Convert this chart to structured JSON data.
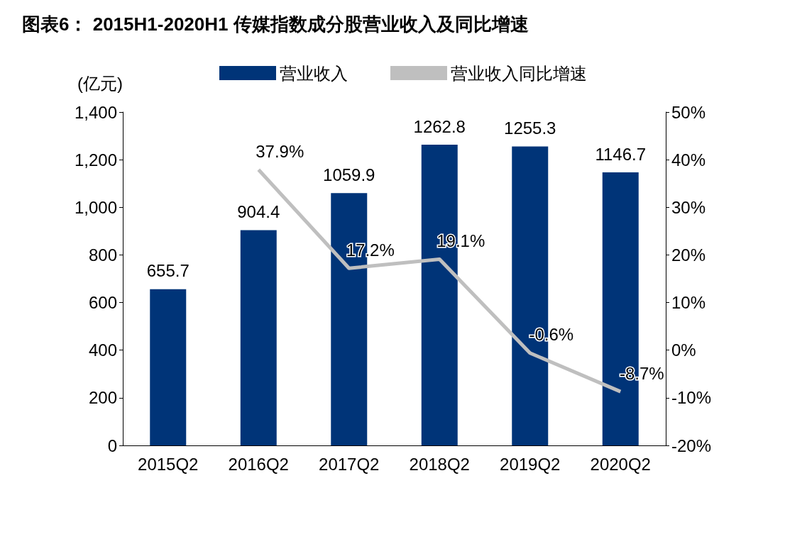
{
  "chart_data": {
    "type": "bar",
    "title": "图表6： 2015H1-2020H1 传媒指数成分股营业收入及同比增速",
    "ylabel": "(亿元)",
    "categories": [
      "2015Q2",
      "2016Q2",
      "2017Q2",
      "2018Q2",
      "2019Q2",
      "2020Q2"
    ],
    "series": [
      {
        "name": "营业收入",
        "color": "#003478",
        "values": [
          655.7,
          904.4,
          1059.9,
          1262.8,
          1255.3,
          1146.7
        ],
        "value_labels": [
          "655.7",
          "904.4",
          "1059.9",
          "1262.8",
          "1255.3",
          "1146.7"
        ]
      },
      {
        "name": "营业收入同比增速",
        "type": "line",
        "axis": "y2",
        "color": "#bfbfbf",
        "marker": "none",
        "values": [
          null,
          37.9,
          17.2,
          19.1,
          -0.6,
          -8.7
        ],
        "value_labels": [
          null,
          "37.9%",
          "17.2%",
          "19.1%",
          "-0.6%",
          "-8.7%"
        ]
      }
    ],
    "ylim": [
      0,
      1400
    ],
    "yticks": [
      {
        "value": 0,
        "label": "0"
      },
      {
        "value": 200,
        "label": "200"
      },
      {
        "value": 400,
        "label": "400"
      },
      {
        "value": 600,
        "label": "600"
      },
      {
        "value": 800,
        "label": "800"
      },
      {
        "value": 1000,
        "label": "1,000"
      },
      {
        "value": 1200,
        "label": "1,200"
      },
      {
        "value": 1400,
        "label": "1,400"
      }
    ],
    "y2lim": [
      -20,
      50
    ],
    "y2ticks": [
      {
        "value": -20,
        "label": "-20%"
      },
      {
        "value": -10,
        "label": "-10%"
      },
      {
        "value": 0,
        "label": "0%"
      },
      {
        "value": 10,
        "label": "10%"
      },
      {
        "value": 20,
        "label": "20%"
      },
      {
        "value": 30,
        "label": "30%"
      },
      {
        "value": 40,
        "label": "40%"
      },
      {
        "value": 50,
        "label": "50%"
      }
    ],
    "grid": false,
    "legend": "top"
  }
}
